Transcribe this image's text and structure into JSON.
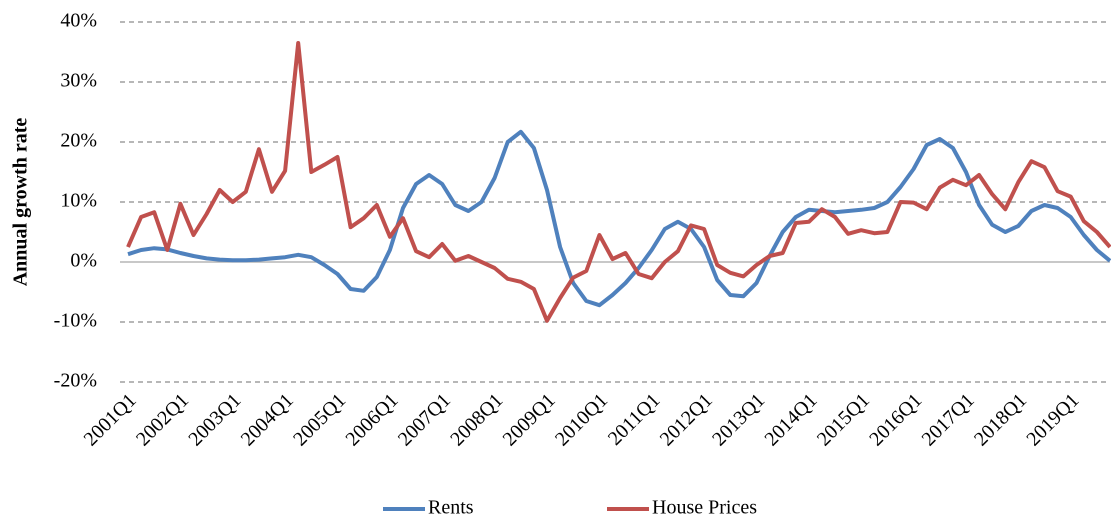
{
  "chart_data": {
    "type": "line",
    "y_label": "Annual growth rate",
    "categories": [
      "2001Q1",
      null,
      null,
      null,
      "2002Q1",
      null,
      null,
      null,
      "2003Q1",
      null,
      null,
      null,
      "2004Q1",
      null,
      null,
      null,
      "2005Q1",
      null,
      null,
      null,
      "2006Q1",
      null,
      null,
      null,
      "2007Q1",
      null,
      null,
      null,
      "2008Q1",
      null,
      null,
      null,
      "2009Q1",
      null,
      null,
      null,
      "2010Q1",
      null,
      null,
      null,
      "2011Q1",
      null,
      null,
      null,
      "2012Q1",
      null,
      null,
      null,
      "2013Q1",
      null,
      null,
      null,
      "2014Q1",
      null,
      null,
      null,
      "2015Q1",
      null,
      null,
      null,
      "2016Q1",
      null,
      null,
      null,
      "2017Q1",
      null,
      null,
      null,
      "2018Q1",
      null,
      null,
      null,
      "2019Q1",
      null,
      null,
      null
    ],
    "series": [
      {
        "name": "Rents",
        "color": "#4f81bd",
        "values": [
          1.3,
          2,
          2.3,
          2.1,
          1.5,
          1,
          0.6,
          0.4,
          0.3,
          0.3,
          0.4,
          0.6,
          0.8,
          1.2,
          0.8,
          -0.5,
          -2,
          -4.5,
          -4.8,
          -2.5,
          2,
          9,
          13,
          14.5,
          13,
          9.5,
          8.5,
          10,
          14,
          20,
          21.7,
          19,
          12,
          2.5,
          -3.5,
          -6.5,
          -7.2,
          -5.5,
          -3.5,
          -1,
          2,
          5.5,
          6.7,
          5.5,
          2.5,
          -3,
          -5.5,
          -5.7,
          -3.5,
          1,
          5,
          7.5,
          8.7,
          8.5,
          8.3,
          8.5,
          8.7,
          9,
          10,
          12.5,
          15.5,
          19.5,
          20.5,
          19,
          15,
          9.5,
          6.2,
          5,
          6,
          8.5,
          9.5,
          9,
          7.5,
          4.5,
          2,
          0.2
        ]
      },
      {
        "name": "House Prices",
        "color": "#c0504d",
        "values": [
          2.5,
          7.5,
          8.3,
          2,
          9.7,
          4.5,
          8,
          12,
          10,
          11.7,
          18.8,
          11.7,
          15.2,
          36.5,
          15,
          16.2,
          17.5,
          5.8,
          7.3,
          9.5,
          4.2,
          7.3,
          1.8,
          0.8,
          3,
          0.2,
          1,
          0,
          -1,
          -2.8,
          -3.3,
          -4.5,
          -9.8,
          -6,
          -2.6,
          -1.5,
          4.5,
          0.5,
          1.5,
          -2,
          -2.7,
          0,
          1.8,
          6.1,
          5.5,
          -0.5,
          -1.8,
          -2.4,
          -0.5,
          1,
          1.5,
          6.5,
          6.7,
          8.8,
          7.5,
          4.7,
          5.3,
          4.8,
          5,
          10,
          9.9,
          8.8,
          12.4,
          13.7,
          12.8,
          14.5,
          11.3,
          8.8,
          13.3,
          16.8,
          15.8,
          11.8,
          10.9,
          6.8,
          5,
          2.5
        ]
      }
    ],
    "ylim": [
      -20,
      40
    ],
    "yticks": [
      {
        "value": -20,
        "label": "-20%"
      },
      {
        "value": -10,
        "label": "-10%"
      },
      {
        "value": 0,
        "label": "0%"
      },
      {
        "value": 10,
        "label": "10%"
      },
      {
        "value": 20,
        "label": "20%"
      },
      {
        "value": 30,
        "label": "30%"
      },
      {
        "value": 40,
        "label": "40%"
      }
    ],
    "grid": true,
    "legend": "bottom"
  }
}
